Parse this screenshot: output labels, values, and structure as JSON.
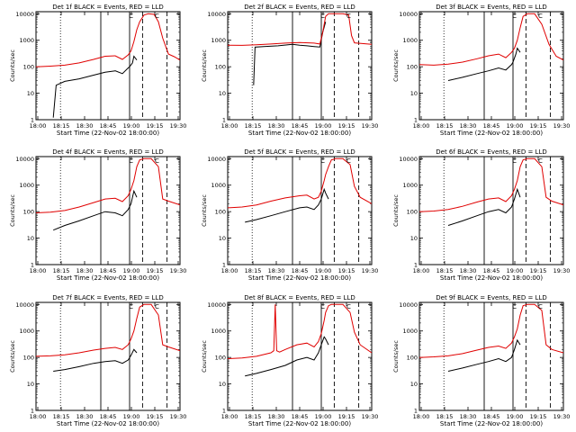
{
  "chart_data": [
    {
      "type": "line",
      "title": "Det 1f BLACK = Events, RED = LLD",
      "xlabel": "Start Time (22-Nov-02 18:00:00)",
      "ylabel": "Counts/sec",
      "yscale": "log",
      "ylim": [
        1,
        12000
      ],
      "xlim": [
        0,
        100
      ],
      "xtick_labels": [
        "18:00",
        "18:15",
        "18:30",
        "18:45",
        "19:00",
        "19:15",
        "19:30"
      ],
      "ytick_labels": [
        "1",
        "10",
        "100",
        "1000",
        "10000"
      ],
      "series": [
        {
          "name": "Events",
          "color": "#000000",
          "x": [
            12,
            14,
            20,
            30,
            40,
            48,
            55,
            60,
            64,
            65,
            67,
            68,
            70
          ],
          "y": [
            1.2,
            20,
            28,
            35,
            48,
            62,
            70,
            55,
            90,
            100,
            140,
            250,
            180
          ]
        },
        {
          "name": "LLD",
          "color": "#e00000",
          "x": [
            0,
            5,
            10,
            20,
            30,
            40,
            48,
            55,
            60,
            64,
            66,
            68,
            70,
            72,
            75,
            78,
            82,
            85,
            88,
            92,
            96,
            100
          ],
          "y": [
            100,
            102,
            105,
            115,
            140,
            190,
            250,
            260,
            190,
            280,
            400,
            900,
            2500,
            5000,
            9000,
            10000,
            9500,
            5000,
            1200,
            300,
            240,
            180
          ]
        }
      ],
      "annotations": [
        "C",
        "C"
      ]
    },
    {
      "type": "line",
      "title": "Det 2f BLACK = Events, RED = LLD",
      "xlabel": "Start Time (22-Nov-02 18:00:00)",
      "ylabel": "Counts/sec",
      "yscale": "log",
      "ylim": [
        1,
        12000
      ],
      "xlim": [
        0,
        100
      ],
      "xtick_labels": [
        "18:00",
        "18:15",
        "18:30",
        "18:45",
        "19:00",
        "19:15",
        "19:30"
      ],
      "ytick_labels": [
        "1",
        "10",
        "100",
        "1000",
        "10000"
      ],
      "series": [
        {
          "name": "Events",
          "color": "#000000",
          "x": [
            18,
            19,
            25,
            35,
            45,
            50,
            55,
            60,
            64,
            66,
            68
          ],
          "y": [
            20,
            550,
            580,
            620,
            700,
            650,
            620,
            580,
            560,
            2000,
            5000
          ]
        },
        {
          "name": "LLD",
          "color": "#e00000",
          "x": [
            0,
            10,
            20,
            30,
            40,
            50,
            60,
            64,
            66,
            68,
            70,
            75,
            80,
            84,
            86,
            88,
            100
          ],
          "y": [
            650,
            640,
            680,
            720,
            780,
            820,
            780,
            720,
            2000,
            8000,
            10000,
            10000,
            10000,
            9000,
            1500,
            800,
            700
          ]
        }
      ],
      "annotations": [
        "C",
        "C"
      ]
    },
    {
      "type": "line",
      "title": "Det 3f BLACK = Events, RED = LLD",
      "xlabel": "Start Time (22-Nov-02 18:00:00)",
      "ylabel": "Counts/sec",
      "yscale": "log",
      "ylim": [
        1,
        12000
      ],
      "xlim": [
        0,
        100
      ],
      "xtick_labels": [
        "18:00",
        "18:15",
        "18:30",
        "18:45",
        "19:00",
        "19:15",
        "19:30"
      ],
      "ytick_labels": [
        "1",
        "10",
        "100",
        "1000",
        "10000"
      ],
      "series": [
        {
          "name": "Events",
          "color": "#000000",
          "x": [
            20,
            30,
            40,
            48,
            55,
            60,
            64,
            65,
            67,
            68,
            70
          ],
          "y": [
            30,
            40,
            55,
            70,
            90,
            75,
            120,
            150,
            300,
            500,
            350
          ]
        },
        {
          "name": "LLD",
          "color": "#e00000",
          "x": [
            0,
            10,
            20,
            30,
            40,
            48,
            55,
            60,
            64,
            66,
            68,
            70,
            72,
            75,
            80,
            85,
            90,
            95,
            100
          ],
          "y": [
            120,
            115,
            125,
            150,
            200,
            260,
            300,
            220,
            350,
            500,
            1000,
            3000,
            8000,
            10000,
            10000,
            4000,
            700,
            250,
            180
          ]
        }
      ],
      "annotations": [
        "C",
        "C"
      ]
    },
    {
      "type": "line",
      "title": "Det 4f BLACK = Events, RED = LLD",
      "xlabel": "Start Time (22-Nov-02 18:00:00)",
      "ylabel": "Counts/sec",
      "yscale": "log",
      "ylim": [
        1,
        12000
      ],
      "xlim": [
        0,
        100
      ],
      "xtick_labels": [
        "18:00",
        "18:15",
        "18:30",
        "18:45",
        "19:00",
        "19:15",
        "19:30"
      ],
      "ytick_labels": [
        "1",
        "10",
        "100",
        "1000",
        "10000"
      ],
      "series": [
        {
          "name": "Events",
          "color": "#000000",
          "x": [
            12,
            20,
            30,
            40,
            48,
            55,
            60,
            64,
            66,
            68,
            70
          ],
          "y": [
            20,
            30,
            45,
            70,
            100,
            90,
            70,
            120,
            200,
            600,
            350
          ]
        },
        {
          "name": "LLD",
          "color": "#e00000",
          "x": [
            0,
            10,
            20,
            30,
            40,
            48,
            55,
            60,
            64,
            66,
            68,
            70,
            72,
            75,
            80,
            85,
            88,
            92,
            100
          ],
          "y": [
            90,
            95,
            110,
            150,
            220,
            300,
            320,
            240,
            400,
            700,
            1500,
            5000,
            9000,
            10000,
            10000,
            5000,
            300,
            250,
            180
          ]
        }
      ],
      "annotations": [
        "C",
        "C"
      ]
    },
    {
      "type": "line",
      "title": "Det 5f BLACK = Events, RED = LLD",
      "xlabel": "Start Time (22-Nov-02 18:00:00)",
      "ylabel": "Counts/sec",
      "yscale": "log",
      "ylim": [
        1,
        12000
      ],
      "xlim": [
        0,
        100
      ],
      "xtick_labels": [
        "18:00",
        "18:15",
        "18:30",
        "18:45",
        "19:00",
        "19:15",
        "19:30"
      ],
      "ytick_labels": [
        "1",
        "10",
        "100",
        "1000",
        "10000"
      ],
      "series": [
        {
          "name": "Events",
          "color": "#000000",
          "x": [
            12,
            20,
            30,
            40,
            50,
            55,
            60,
            63,
            65,
            67,
            68,
            70
          ],
          "y": [
            40,
            50,
            70,
            100,
            140,
            150,
            120,
            180,
            300,
            700,
            500,
            300
          ]
        },
        {
          "name": "LLD",
          "color": "#e00000",
          "x": [
            0,
            10,
            20,
            30,
            40,
            50,
            55,
            60,
            63,
            65,
            67,
            68,
            70,
            72,
            75,
            80,
            85,
            88,
            92,
            100
          ],
          "y": [
            140,
            150,
            180,
            250,
            330,
            400,
            420,
            300,
            350,
            600,
            1500,
            2500,
            5000,
            9000,
            10000,
            10000,
            6000,
            900,
            350,
            200
          ]
        }
      ],
      "annotations": [
        "C",
        "C"
      ]
    },
    {
      "type": "line",
      "title": "Det 6f BLACK = Events, RED = LLD",
      "xlabel": "Start Time (22-Nov-02 18:00:00)",
      "ylabel": "Counts/sec",
      "yscale": "log",
      "ylim": [
        1,
        12000
      ],
      "xlim": [
        0,
        100
      ],
      "xtick_labels": [
        "18:00",
        "18:15",
        "18:30",
        "18:45",
        "19:00",
        "19:15",
        "19:30"
      ],
      "ytick_labels": [
        "1",
        "10",
        "100",
        "1000",
        "10000"
      ],
      "series": [
        {
          "name": "Events",
          "color": "#000000",
          "x": [
            20,
            30,
            40,
            48,
            55,
            60,
            64,
            66,
            68,
            70
          ],
          "y": [
            30,
            45,
            70,
            100,
            120,
            90,
            150,
            300,
            700,
            350
          ]
        },
        {
          "name": "LLD",
          "color": "#e00000",
          "x": [
            0,
            10,
            20,
            30,
            40,
            48,
            55,
            60,
            64,
            66,
            68,
            70,
            72,
            75,
            80,
            85,
            88,
            92,
            100
          ],
          "y": [
            100,
            105,
            120,
            160,
            230,
            300,
            330,
            240,
            400,
            700,
            1500,
            5000,
            9000,
            10000,
            10000,
            5000,
            350,
            250,
            180
          ]
        }
      ],
      "annotations": [
        "C",
        "C"
      ]
    },
    {
      "type": "line",
      "title": "Det 7f BLACK = Events, RED = LLD",
      "xlabel": "Start Time (22-Nov-02 18:00:00)",
      "ylabel": "Counts/sec",
      "yscale": "log",
      "ylim": [
        1,
        12000
      ],
      "xlim": [
        0,
        100
      ],
      "xtick_labels": [
        "18:00",
        "18:15",
        "18:30",
        "18:45",
        "19:00",
        "19:15",
        "19:30"
      ],
      "ytick_labels": [
        "1",
        "10",
        "100",
        "1000",
        "10000"
      ],
      "series": [
        {
          "name": "Events",
          "color": "#000000",
          "x": [
            12,
            20,
            30,
            40,
            48,
            55,
            60,
            64,
            66,
            68,
            70
          ],
          "y": [
            30,
            35,
            45,
            60,
            70,
            75,
            60,
            80,
            120,
            200,
            150
          ]
        },
        {
          "name": "LLD",
          "color": "#e00000",
          "x": [
            0,
            10,
            20,
            30,
            40,
            48,
            55,
            60,
            64,
            66,
            68,
            70,
            72,
            75,
            80,
            85,
            88,
            92,
            100
          ],
          "y": [
            110,
            115,
            125,
            150,
            190,
            220,
            240,
            200,
            300,
            500,
            1000,
            3000,
            8000,
            10000,
            10000,
            4000,
            300,
            250,
            180
          ]
        }
      ],
      "annotations": [
        "C",
        "C"
      ]
    },
    {
      "type": "line",
      "title": "Det 8f BLACK = Events, RED = LLD",
      "xlabel": "Start Time (22-Nov-02 18:00:00)",
      "ylabel": "Counts/sec",
      "yscale": "log",
      "ylim": [
        1,
        12000
      ],
      "xlim": [
        0,
        100
      ],
      "xtick_labels": [
        "18:00",
        "18:15",
        "18:30",
        "18:45",
        "19:00",
        "19:15",
        "19:30"
      ],
      "ytick_labels": [
        "1",
        "10",
        "100",
        "1000",
        "10000"
      ],
      "series": [
        {
          "name": "Events",
          "color": "#000000",
          "x": [
            12,
            20,
            30,
            40,
            48,
            55,
            60,
            63,
            65,
            67,
            68,
            70
          ],
          "y": [
            20,
            25,
            35,
            50,
            80,
            100,
            80,
            150,
            300,
            600,
            500,
            300
          ]
        },
        {
          "name": "LLD",
          "color": "#e00000",
          "x": [
            0,
            10,
            20,
            30,
            32,
            33,
            34,
            36,
            40,
            48,
            55,
            60,
            63,
            65,
            67,
            68,
            70,
            72,
            75,
            80,
            85,
            88,
            92,
            100
          ],
          "y": [
            90,
            95,
            110,
            150,
            180,
            10000,
            180,
            160,
            200,
            300,
            350,
            250,
            400,
            800,
            2500,
            5000,
            9000,
            10000,
            10000,
            10000,
            5000,
            900,
            300,
            150
          ]
        }
      ],
      "annotations": [
        "C",
        "C"
      ]
    },
    {
      "type": "line",
      "title": "Det 9f BLACK = Events, RED = LLD",
      "xlabel": "Start Time (22-Nov-02 18:00:00)",
      "ylabel": "Counts/sec",
      "yscale": "log",
      "ylim": [
        1,
        12000
      ],
      "xlim": [
        0,
        100
      ],
      "xtick_labels": [
        "18:00",
        "18:15",
        "18:30",
        "18:45",
        "19:00",
        "19:15",
        "19:30"
      ],
      "ytick_labels": [
        "1",
        "10",
        "100",
        "1000",
        "10000"
      ],
      "series": [
        {
          "name": "Events",
          "color": "#000000",
          "x": [
            20,
            30,
            40,
            48,
            55,
            60,
            64,
            66,
            68,
            70
          ],
          "y": [
            30,
            40,
            55,
            70,
            90,
            70,
            100,
            200,
            450,
            300
          ]
        },
        {
          "name": "LLD",
          "color": "#e00000",
          "x": [
            0,
            10,
            20,
            30,
            40,
            48,
            55,
            60,
            64,
            66,
            68,
            70,
            72,
            75,
            80,
            85,
            88,
            92,
            100
          ],
          "y": [
            100,
            105,
            115,
            140,
            190,
            240,
            270,
            220,
            350,
            600,
            1200,
            4000,
            9000,
            10000,
            10000,
            6000,
            300,
            200,
            150
          ]
        }
      ],
      "annotations": [
        "C",
        "C"
      ]
    }
  ],
  "markers": {
    "dotted_x": [
      17
    ],
    "solid_x": [
      45,
      65
    ],
    "dashed_x": [
      74,
      91
    ]
  }
}
